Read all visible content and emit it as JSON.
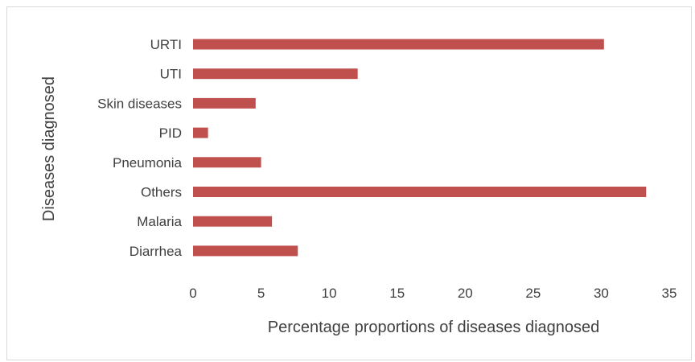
{
  "chart_data": {
    "type": "bar",
    "orientation": "horizontal",
    "categories": [
      "URTI",
      "UTI",
      "Skin diseases",
      "PID",
      "Pneumonia",
      "Others",
      "Malaria",
      "Diarrhea"
    ],
    "values": [
      30.2,
      12.1,
      4.6,
      1.1,
      5.0,
      33.3,
      5.8,
      7.7
    ],
    "xlabel": "Percentage proportions of diseases diagnosed",
    "ylabel": "Diseases diagnosed",
    "xlim": [
      0,
      35
    ],
    "xticks": [
      "0",
      "5",
      "10",
      "15",
      "20",
      "25",
      "30",
      "35"
    ],
    "bar_color": "#c0504d",
    "grid": false,
    "legend": "none"
  }
}
